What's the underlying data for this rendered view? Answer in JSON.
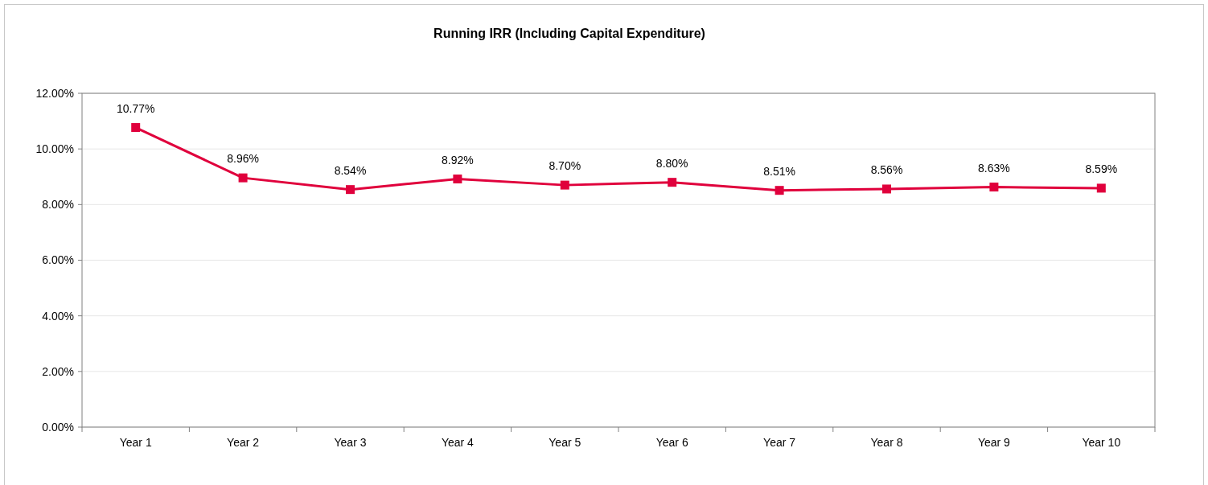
{
  "chart_data": {
    "type": "line",
    "title": "Running IRR (Including Capital Expenditure)",
    "categories": [
      "Year 1",
      "Year 2",
      "Year 3",
      "Year 4",
      "Year 5",
      "Year 6",
      "Year 7",
      "Year 8",
      "Year 9",
      "Year 10"
    ],
    "series": [
      {
        "color": "#e0003c",
        "values": [
          10.77,
          8.96,
          8.54,
          8.92,
          8.7,
          8.8,
          8.51,
          8.56,
          8.63,
          8.59
        ],
        "value_labels": [
          "10.77%",
          "8.96%",
          "8.54%",
          "8.92%",
          "8.70%",
          "8.80%",
          "8.51%",
          "8.56%",
          "8.63%",
          "8.59%"
        ]
      }
    ],
    "ylim": [
      0,
      12
    ],
    "yticks": [
      {
        "value": 0,
        "label": "0.00%"
      },
      {
        "value": 2,
        "label": "2.00%"
      },
      {
        "value": 4,
        "label": "4.00%"
      },
      {
        "value": 6,
        "label": "6.00%"
      },
      {
        "value": 8,
        "label": "8.00%"
      },
      {
        "value": 10,
        "label": "10.00%"
      },
      {
        "value": 12,
        "label": "12.00%"
      }
    ],
    "grid": "y",
    "marker": "square",
    "line_style": "solid"
  }
}
